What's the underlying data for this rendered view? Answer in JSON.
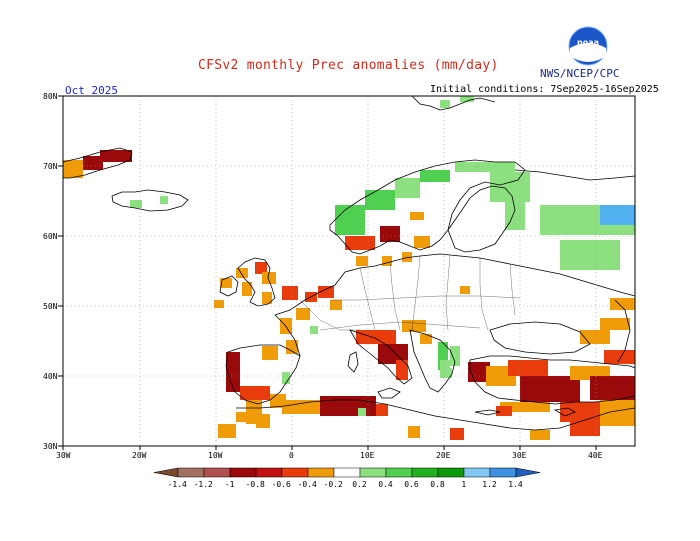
{
  "header": {
    "title": "CFSv2 monthly Prec anomalies (mm/day)",
    "agency": "NWS/NCEP/CPC",
    "logo_text": "noaa",
    "month": "Oct 2025",
    "initial_conditions": "Initial conditions: 7Sep2025-16Sep2025"
  },
  "axes": {
    "lat_labels": [
      "80N",
      "70N",
      "60N",
      "50N",
      "40N",
      "30N"
    ],
    "lon_labels": [
      "30W",
      "20W",
      "10W",
      "0",
      "10E",
      "20E",
      "30E",
      "40E"
    ]
  },
  "legend": {
    "labels": [
      "-1.4",
      "-1.2",
      "-1",
      "-0.8",
      "-0.6",
      "-0.4",
      "-0.2",
      "0.2",
      "0.4",
      "0.6",
      "0.8",
      "1",
      "1.2",
      "1.4"
    ],
    "colors": [
      "#7a4a2a",
      "#a27060",
      "#b05050",
      "#9a0a0a",
      "#c01010",
      "#e83c0c",
      "#f09c08",
      "#ffffff",
      "#8ce080",
      "#50d050",
      "#20b020",
      "#0a9a0a",
      "#80c8f0",
      "#4090e0",
      "#2060c0"
    ]
  },
  "colors": {
    "title": "#d42a1c",
    "agency": "#1a2a8a",
    "month": "#1a2acc",
    "dry_strong": "#9a0a0a",
    "dry_mid": "#e83c0c",
    "dry_weak": "#f09c08",
    "wet_weak": "#8ce080",
    "wet_mid": "#50d050"
  }
}
